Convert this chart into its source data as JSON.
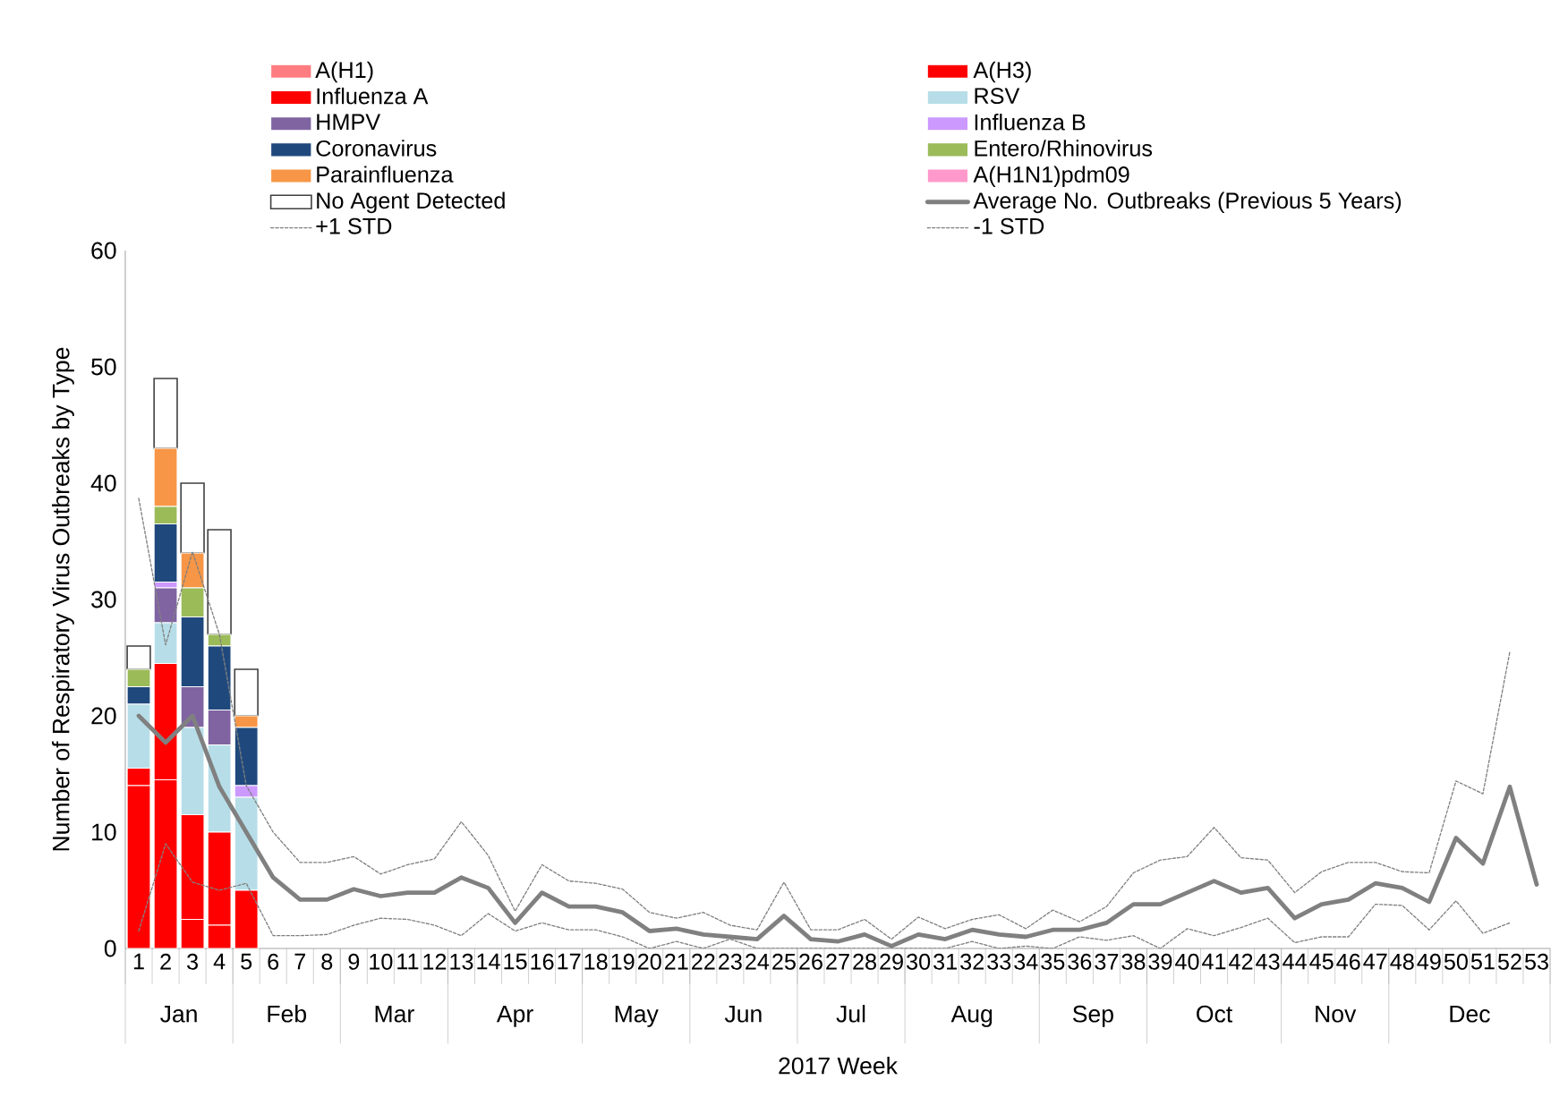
{
  "chart_data": {
    "type": "bar",
    "stacked": true,
    "legend": "top",
    "xlabel": "2017 Week",
    "ylabel": "Number of Respiratory Virus Outbreaks by Type",
    "categories": [
      "1",
      "2",
      "3",
      "4",
      "5",
      "6",
      "7",
      "8",
      "9",
      "10",
      "11",
      "12",
      "13",
      "14",
      "15",
      "16",
      "17",
      "18",
      "19",
      "20",
      "21",
      "22",
      "23",
      "24",
      "25",
      "26",
      "27",
      "28",
      "29",
      "30",
      "31",
      "32",
      "33",
      "34",
      "35",
      "36",
      "37",
      "38",
      "39",
      "40",
      "41",
      "42",
      "43",
      "44",
      "45",
      "46",
      "47",
      "48",
      "49",
      "50",
      "51",
      "52",
      "53"
    ],
    "ylim": [
      0,
      60
    ],
    "yticks": [
      0,
      10,
      20,
      30,
      40,
      50,
      60
    ],
    "series": [
      {
        "name": "A(H1)",
        "color": "#ff7c80",
        "values": [
          0,
          0,
          0,
          0,
          0,
          null,
          null,
          null,
          null,
          null,
          null,
          null,
          null,
          null,
          null,
          null,
          null,
          null,
          null,
          null,
          null,
          null,
          null,
          null,
          null,
          null,
          null,
          null,
          null,
          null,
          null,
          null,
          null,
          null,
          null,
          null,
          null,
          null,
          null,
          null,
          null,
          null,
          null,
          null,
          null,
          null,
          null,
          null,
          null,
          null,
          null,
          null,
          null
        ]
      },
      {
        "name": "A(H3)",
        "color": "#ff0000",
        "values": [
          14,
          14.5,
          2.5,
          2,
          0,
          null,
          null,
          null,
          null,
          null,
          null,
          null,
          null,
          null,
          null,
          null,
          null,
          null,
          null,
          null,
          null,
          null,
          null,
          null,
          null,
          null,
          null,
          null,
          null,
          null,
          null,
          null,
          null,
          null,
          null,
          null,
          null,
          null,
          null,
          null,
          null,
          null,
          null,
          null,
          null,
          null,
          null,
          null,
          null,
          null,
          null,
          null,
          null
        ]
      },
      {
        "name": "Influenza A",
        "color": "#ff0000",
        "values": [
          1.5,
          10,
          9,
          8,
          5,
          null,
          null,
          null,
          null,
          null,
          null,
          null,
          null,
          null,
          null,
          null,
          null,
          null,
          null,
          null,
          null,
          null,
          null,
          null,
          null,
          null,
          null,
          null,
          null,
          null,
          null,
          null,
          null,
          null,
          null,
          null,
          null,
          null,
          null,
          null,
          null,
          null,
          null,
          null,
          null,
          null,
          null,
          null,
          null,
          null,
          null,
          null,
          null
        ]
      },
      {
        "name": "RSV",
        "color": "#b7dee8",
        "values": [
          5.5,
          3.5,
          7.5,
          7.5,
          8,
          null,
          null,
          null,
          null,
          null,
          null,
          null,
          null,
          null,
          null,
          null,
          null,
          null,
          null,
          null,
          null,
          null,
          null,
          null,
          null,
          null,
          null,
          null,
          null,
          null,
          null,
          null,
          null,
          null,
          null,
          null,
          null,
          null,
          null,
          null,
          null,
          null,
          null,
          null,
          null,
          null,
          null,
          null,
          null,
          null,
          null,
          null,
          null
        ]
      },
      {
        "name": "HMPV",
        "color": "#8064a2",
        "values": [
          0,
          3,
          3.5,
          3,
          0,
          null,
          null,
          null,
          null,
          null,
          null,
          null,
          null,
          null,
          null,
          null,
          null,
          null,
          null,
          null,
          null,
          null,
          null,
          null,
          null,
          null,
          null,
          null,
          null,
          null,
          null,
          null,
          null,
          null,
          null,
          null,
          null,
          null,
          null,
          null,
          null,
          null,
          null,
          null,
          null,
          null,
          null,
          null,
          null,
          null,
          null,
          null,
          null
        ]
      },
      {
        "name": "Influenza B",
        "color": "#cc99ff",
        "values": [
          0,
          0.5,
          0,
          0,
          1,
          null,
          null,
          null,
          null,
          null,
          null,
          null,
          null,
          null,
          null,
          null,
          null,
          null,
          null,
          null,
          null,
          null,
          null,
          null,
          null,
          null,
          null,
          null,
          null,
          null,
          null,
          null,
          null,
          null,
          null,
          null,
          null,
          null,
          null,
          null,
          null,
          null,
          null,
          null,
          null,
          null,
          null,
          null,
          null,
          null,
          null,
          null,
          null
        ]
      },
      {
        "name": "Coronavirus",
        "color": "#1f497d",
        "values": [
          1.5,
          5,
          6,
          5.5,
          5,
          null,
          null,
          null,
          null,
          null,
          null,
          null,
          null,
          null,
          null,
          null,
          null,
          null,
          null,
          null,
          null,
          null,
          null,
          null,
          null,
          null,
          null,
          null,
          null,
          null,
          null,
          null,
          null,
          null,
          null,
          null,
          null,
          null,
          null,
          null,
          null,
          null,
          null,
          null,
          null,
          null,
          null,
          null,
          null,
          null,
          null,
          null,
          null
        ]
      },
      {
        "name": "Entero/Rhinovirus",
        "color": "#9bbb59",
        "values": [
          1.5,
          1.5,
          2.5,
          1,
          0,
          null,
          null,
          null,
          null,
          null,
          null,
          null,
          null,
          null,
          null,
          null,
          null,
          null,
          null,
          null,
          null,
          null,
          null,
          null,
          null,
          null,
          null,
          null,
          null,
          null,
          null,
          null,
          null,
          null,
          null,
          null,
          null,
          null,
          null,
          null,
          null,
          null,
          null,
          null,
          null,
          null,
          null,
          null,
          null,
          null,
          null,
          null,
          null
        ]
      },
      {
        "name": "Parainfluenza",
        "color": "#f79646",
        "values": [
          0,
          5,
          3,
          0,
          1,
          null,
          null,
          null,
          null,
          null,
          null,
          null,
          null,
          null,
          null,
          null,
          null,
          null,
          null,
          null,
          null,
          null,
          null,
          null,
          null,
          null,
          null,
          null,
          null,
          null,
          null,
          null,
          null,
          null,
          null,
          null,
          null,
          null,
          null,
          null,
          null,
          null,
          null,
          null,
          null,
          null,
          null,
          null,
          null,
          null,
          null,
          null,
          null
        ]
      },
      {
        "name": "A(H1N1)pdm09",
        "color": "#ff99cc",
        "values": [
          0,
          0,
          0,
          0,
          0,
          null,
          null,
          null,
          null,
          null,
          null,
          null,
          null,
          null,
          null,
          null,
          null,
          null,
          null,
          null,
          null,
          null,
          null,
          null,
          null,
          null,
          null,
          null,
          null,
          null,
          null,
          null,
          null,
          null,
          null,
          null,
          null,
          null,
          null,
          null,
          null,
          null,
          null,
          null,
          null,
          null,
          null,
          null,
          null,
          null,
          null,
          null,
          null
        ]
      },
      {
        "name": "No Agent Detected",
        "color": "#ffffff",
        "values": [
          2,
          6,
          6,
          9,
          4,
          null,
          null,
          null,
          null,
          null,
          null,
          null,
          null,
          null,
          null,
          null,
          null,
          null,
          null,
          null,
          null,
          null,
          null,
          null,
          null,
          null,
          null,
          null,
          null,
          null,
          null,
          null,
          null,
          null,
          null,
          null,
          null,
          null,
          null,
          null,
          null,
          null,
          null,
          null,
          null,
          null,
          null,
          null,
          null,
          null,
          null,
          null,
          null
        ]
      },
      {
        "name": "Average No. Outbreaks (Previous 5 Years)",
        "type": "line",
        "line_style": "solid",
        "color": "#808080",
        "values": [
          20,
          17.7,
          20,
          13.9,
          10,
          6.1,
          4.2,
          4.2,
          5.1,
          4.5,
          4.8,
          4.8,
          6.1,
          5.2,
          2.2,
          4.8,
          3.6,
          3.6,
          3.1,
          1.5,
          1.7,
          1.2,
          1.0,
          0.8,
          2.8,
          0.8,
          0.6,
          1.2,
          0.2,
          1.2,
          0.8,
          1.6,
          1.2,
          1.0,
          1.6,
          1.6,
          2.2,
          3.8,
          3.8,
          4.8,
          5.8,
          4.8,
          5.2,
          2.6,
          3.8,
          4.2,
          5.6,
          5.2,
          4.0,
          9.5,
          7.3,
          13.9,
          5.5
        ]
      },
      {
        "name": "+1 STD",
        "type": "line",
        "line_style": "dashed",
        "color": "#808080",
        "values": [
          38.7,
          26.1,
          34.1,
          27,
          14,
          10,
          7.4,
          7.4,
          7.9,
          6.4,
          7.2,
          7.7,
          10.9,
          8.0,
          3.2,
          7.2,
          5.8,
          5.6,
          5.1,
          3.1,
          2.6,
          3.1,
          2.0,
          1.6,
          5.7,
          1.6,
          1.6,
          2.5,
          0.8,
          2.7,
          1.7,
          2.5,
          2.9,
          1.7,
          3.3,
          2.3,
          3.6,
          6.5,
          7.6,
          7.9,
          10.4,
          7.8,
          7.6,
          4.8,
          6.6,
          7.4,
          7.4,
          6.6,
          6.5,
          14.4,
          13.3,
          25.5,
          null
        ]
      },
      {
        "name": "-1 STD",
        "type": "line",
        "line_style": "dashed",
        "color": "#808080",
        "values": [
          1.5,
          9,
          5.7,
          5,
          5.6,
          1.1,
          1.1,
          1.2,
          2.0,
          2.6,
          2.5,
          2.0,
          1.1,
          3.0,
          1.5,
          2.2,
          1.6,
          1.6,
          1.0,
          0,
          0.6,
          0,
          0.8,
          0,
          0,
          0,
          0,
          0,
          0,
          0,
          0,
          0.6,
          0,
          0.2,
          0,
          1.0,
          0.7,
          1.1,
          0,
          1.7,
          1.1,
          1.8,
          2.6,
          0.5,
          1.0,
          1.0,
          3.8,
          3.7,
          1.6,
          4.1,
          1.3,
          2.2,
          null
        ]
      }
    ],
    "annotations": [
      "Jan",
      "Feb",
      "Mar",
      "Apr",
      "May",
      "Jun",
      "Jul",
      "Aug",
      "Sep",
      "Oct",
      "Nov",
      "Dec"
    ]
  }
}
